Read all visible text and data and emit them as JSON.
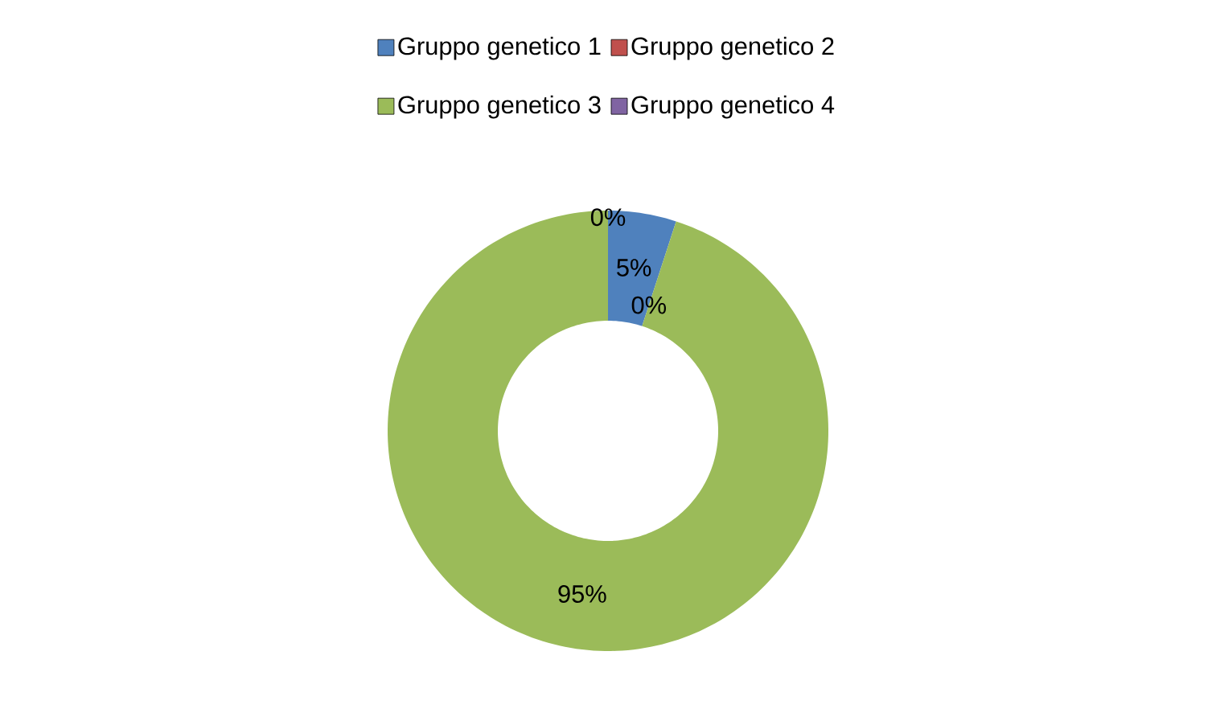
{
  "chart_data": {
    "type": "donut",
    "categories": [
      "Gruppo genetico 1",
      "Gruppo genetico 2",
      "Gruppo genetico 3",
      "Gruppo genetico 4"
    ],
    "values": [
      5,
      0,
      95,
      0
    ],
    "value_labels": [
      "5%",
      "0%",
      "95%",
      "0%"
    ],
    "colors": [
      "#4f81bd",
      "#c0504d",
      "#9bbb59",
      "#8064a2"
    ],
    "legend": "top"
  }
}
